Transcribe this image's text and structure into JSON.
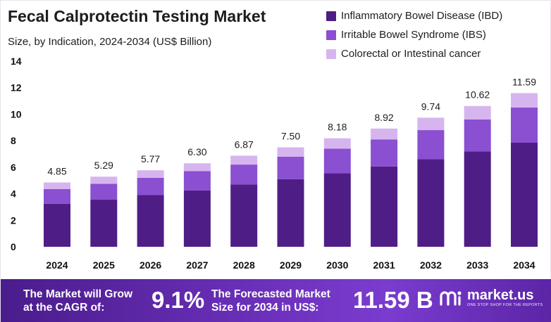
{
  "title": "Fecal Calprotectin Testing Market",
  "subtitle": "Size, by Indication, 2024-2034 (US$ Billion)",
  "colors": {
    "ibd": "#4f1d86",
    "ibs": "#8b4fd1",
    "colorectal": "#d6b5ef",
    "banner": "#6a2fb8"
  },
  "legend": [
    {
      "label": "Inflammatory Bowel Disease (IBD)",
      "color": "#4f1d86"
    },
    {
      "label": "Irritable Bowel Syndrome (IBS)",
      "color": "#8b4fd1"
    },
    {
      "label": "Colorectal or Intestinal cancer",
      "color": "#d6b5ef"
    }
  ],
  "chart_data": {
    "type": "bar",
    "stacked": true,
    "title": "Fecal Calprotectin Testing Market",
    "xlabel": "",
    "ylabel": "",
    "ylim": [
      0,
      14
    ],
    "yticks": [
      0,
      2,
      4,
      6,
      8,
      10,
      12,
      14
    ],
    "categories": [
      "2024",
      "2025",
      "2026",
      "2027",
      "2028",
      "2029",
      "2030",
      "2031",
      "2032",
      "2033",
      "2034"
    ],
    "series": [
      {
        "name": "Inflammatory Bowel Disease (IBD)",
        "values": [
          3.25,
          3.55,
          3.9,
          4.25,
          4.7,
          5.1,
          5.55,
          6.05,
          6.6,
          7.2,
          7.85
        ]
      },
      {
        "name": "Irritable Bowel Syndrome (IBS)",
        "values": [
          1.1,
          1.2,
          1.3,
          1.45,
          1.5,
          1.7,
          1.85,
          2.05,
          2.2,
          2.4,
          2.65
        ]
      },
      {
        "name": "Colorectal or Intestinal cancer",
        "values": [
          0.5,
          0.54,
          0.57,
          0.6,
          0.67,
          0.7,
          0.78,
          0.82,
          0.94,
          1.02,
          1.09
        ]
      }
    ],
    "totals": [
      "4.85",
      "5.29",
      "5.77",
      "6.30",
      "6.87",
      "7.50",
      "8.18",
      "8.92",
      "9.74",
      "10.62",
      "11.59"
    ],
    "legend_position": "top-right"
  },
  "banner": {
    "cagr_text_line1": "The Market will Grow",
    "cagr_text_line2": "at the CAGR of:",
    "cagr_value": "9.1%",
    "forecast_text_line1": "The Forecasted Market",
    "forecast_text_line2": "Size for 2034 in US$:",
    "forecast_value": "11.59 B",
    "brand_name": "market.us",
    "brand_tagline": "ONE STOP SHOP FOR THE REPORTS"
  }
}
